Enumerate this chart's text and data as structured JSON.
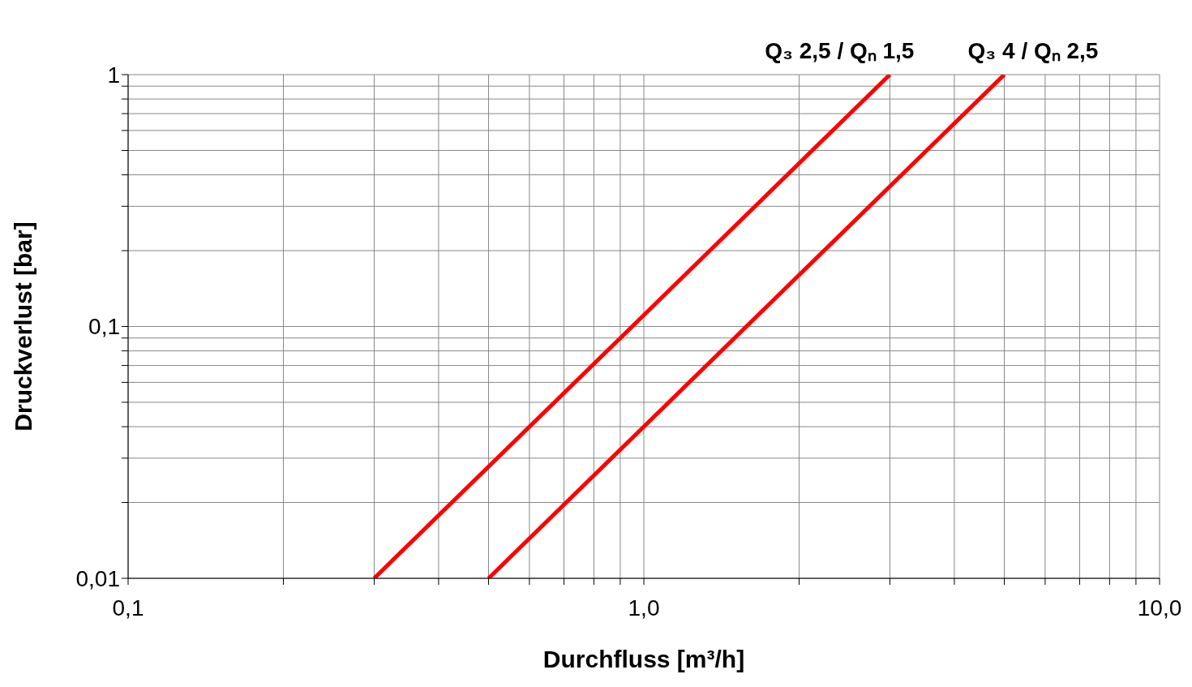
{
  "chart_data": {
    "type": "line",
    "xlabel": "Durchfluss [m³/h]",
    "ylabel": "Druckverlust [bar]",
    "series": [
      {
        "name": "Q₃ 2,5 / Qₙ 1,5",
        "color": "#ff0000",
        "x": [
          0.3,
          1,
          3
        ],
        "values": [
          0.01,
          0.111,
          1
        ]
      },
      {
        "name": "Q₃ 4 / Qₙ 2,5",
        "color": "#ff0000",
        "x": [
          0.5,
          1,
          5
        ],
        "values": [
          0.01,
          0.04,
          1
        ]
      }
    ],
    "log": "xy",
    "xlim": [
      0.1,
      10
    ],
    "ylim": [
      0.01,
      1
    ],
    "xticks": [
      {
        "value": 0.1,
        "label": "0,1"
      },
      {
        "value": 0.2,
        "label": null
      },
      {
        "value": 0.3,
        "label": null
      },
      {
        "value": 0.4,
        "label": null
      },
      {
        "value": 0.5,
        "label": null
      },
      {
        "value": 0.6,
        "label": null
      },
      {
        "value": 0.7,
        "label": null
      },
      {
        "value": 0.8,
        "label": null
      },
      {
        "value": 0.9,
        "label": null
      },
      {
        "value": 1,
        "label": "1,0"
      },
      {
        "value": 2,
        "label": null
      },
      {
        "value": 3,
        "label": null
      },
      {
        "value": 4,
        "label": null
      },
      {
        "value": 5,
        "label": null
      },
      {
        "value": 6,
        "label": null
      },
      {
        "value": 7,
        "label": null
      },
      {
        "value": 8,
        "label": null
      },
      {
        "value": 9,
        "label": null
      },
      {
        "value": 10,
        "label": "10,0"
      }
    ],
    "yticks": [
      {
        "value": 0.01,
        "label": "0,01"
      },
      {
        "value": 0.02,
        "label": null
      },
      {
        "value": 0.03,
        "label": null
      },
      {
        "value": 0.04,
        "label": null
      },
      {
        "value": 0.05,
        "label": null
      },
      {
        "value": 0.06,
        "label": null
      },
      {
        "value": 0.07,
        "label": null
      },
      {
        "value": 0.08,
        "label": null
      },
      {
        "value": 0.09,
        "label": null
      },
      {
        "value": 0.1,
        "label": "0,1"
      },
      {
        "value": 0.2,
        "label": null
      },
      {
        "value": 0.3,
        "label": null
      },
      {
        "value": 0.4,
        "label": null
      },
      {
        "value": 0.5,
        "label": null
      },
      {
        "value": 0.6,
        "label": null
      },
      {
        "value": 0.7,
        "label": null
      },
      {
        "value": 0.8,
        "label": null
      },
      {
        "value": 0.9,
        "label": null
      },
      {
        "value": 1,
        "label": "1"
      }
    ],
    "grid": true,
    "legend": false,
    "marker": "none",
    "line_style": "solid"
  }
}
